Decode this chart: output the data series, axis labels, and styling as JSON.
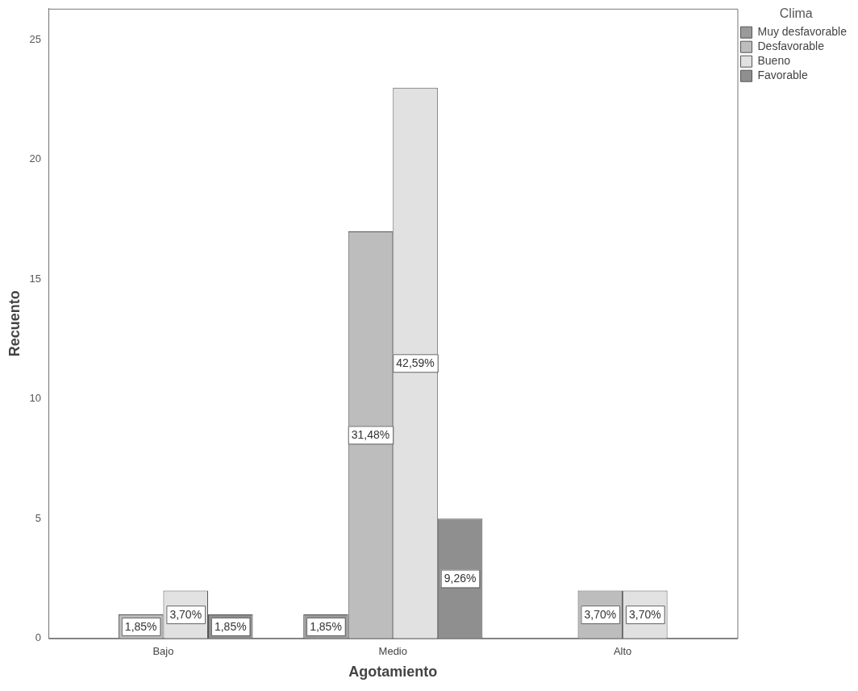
{
  "chart_data": {
    "type": "bar",
    "xlabel": "Agotamiento",
    "ylabel": "Recuento",
    "legend_title": "Clima",
    "legend": "top right",
    "grid": false,
    "categories": [
      "Bajo",
      "Medio",
      "Alto"
    ],
    "ylim": [
      0,
      26.3
    ],
    "yticks": [
      0,
      5,
      10,
      15,
      20,
      25
    ],
    "series": [
      {
        "name": "Muy desfavorable",
        "color": "#9a9a9a",
        "values": [
          0,
          1,
          0
        ]
      },
      {
        "name": "Desfavorable",
        "color": "#bdbdbd",
        "values": [
          1,
          17,
          2
        ]
      },
      {
        "name": "Bueno",
        "color": "#e1e1e1",
        "values": [
          2,
          23,
          2
        ]
      },
      {
        "name": "Favorable",
        "color": "#8f8f8f",
        "values": [
          1,
          5,
          0
        ]
      }
    ],
    "annotations": [
      "1,85%",
      "3,70%",
      "1,85%",
      "1,85%",
      "31,48%",
      "42,59%",
      "9,26%",
      "3,70%",
      "3,70%"
    ]
  }
}
